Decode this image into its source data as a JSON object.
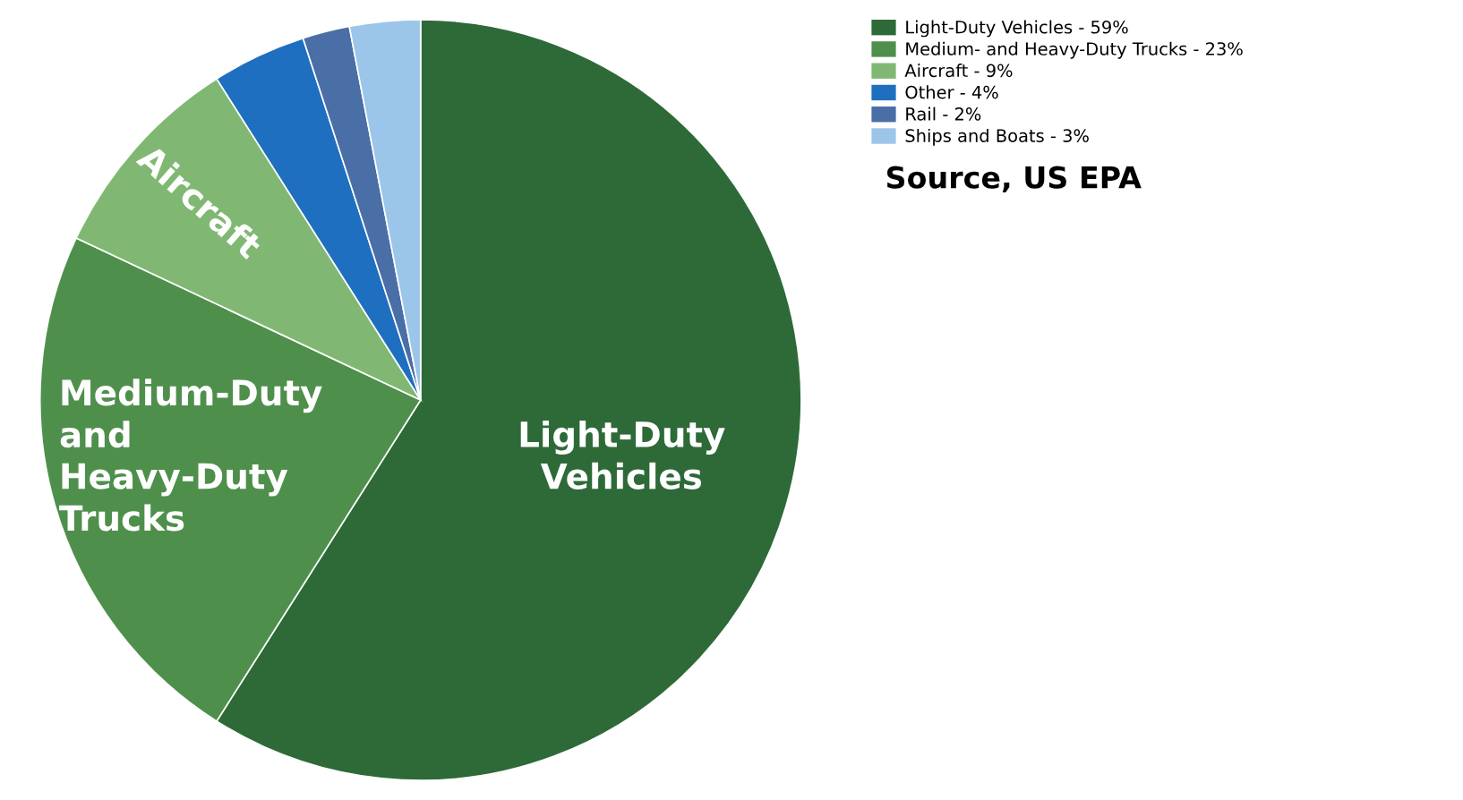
{
  "chart_data": {
    "type": "pie",
    "categories": [
      "Light-Duty Vehicles - 59%",
      "Medium- and Heavy-Duty Trucks - 23%",
      "Aircraft - 9%",
      "Other - 4%",
      "Rail - 2%",
      "Ships and Boats - 3%"
    ],
    "values": [
      59,
      23,
      9,
      4,
      2,
      3
    ],
    "colors": [
      "#2d6a38",
      "#4f8f4c",
      "#80b873",
      "#1f6fc0",
      "#4a6ea6",
      "#9cc5ea"
    ],
    "legend": "top right",
    "annotations": [
      "Light-Duty\nVehicles",
      "Medium-Duty\nand\nHeavy-Duty\nTrucks",
      "Aircraft",
      "Source, US EPA"
    ]
  }
}
